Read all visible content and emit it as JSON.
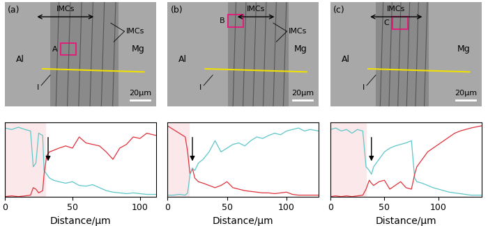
{
  "panels": [
    {
      "label": "(a)",
      "matrix_left": "Al",
      "matrix_right": "Mg",
      "imc_labels": [
        "IMCs",
        "IMCs"
      ],
      "region": "A",
      "layer": "I",
      "scale_bar": "20μm"
    },
    {
      "label": "(b)",
      "matrix_left": "Al",
      "matrix_right": "Mg",
      "imc_labels": [
        "IMCs",
        "IMCs"
      ],
      "region": "B",
      "layer": "I",
      "scale_bar": "20μm"
    },
    {
      "label": "(c)",
      "matrix_left": "Al",
      "matrix_right": "Mg",
      "imc_labels": [
        "IMCs"
      ],
      "region": "C",
      "layer": "I",
      "scale_bar": "20μm"
    }
  ],
  "chart_data": [
    {
      "type": "line",
      "x_label": "Distance/μm",
      "xlim": [
        0,
        112
      ],
      "xticks": [
        0,
        50,
        100
      ],
      "ylim": [
        0,
        1
      ],
      "tick_labels": "x",
      "shaded_range": [
        0,
        30
      ],
      "arrow_at": 32,
      "x": [
        0,
        5,
        10,
        15,
        19,
        21,
        23,
        25,
        28,
        29,
        31,
        33,
        36,
        40,
        45,
        50,
        55,
        60,
        65,
        70,
        75,
        80,
        85,
        90,
        95,
        100,
        105,
        112
      ],
      "series": [
        {
          "color": "#5cc6c8",
          "values": [
            0.92,
            0.9,
            0.93,
            0.9,
            0.88,
            0.4,
            0.45,
            0.85,
            0.82,
            0.35,
            0.3,
            0.25,
            0.22,
            0.2,
            0.18,
            0.2,
            0.15,
            0.14,
            0.16,
            0.12,
            0.08,
            0.06,
            0.05,
            0.04,
            0.05,
            0.04,
            0.03,
            0.03
          ]
        },
        {
          "color": "#e0303a",
          "values": [
            0,
            0.01,
            0,
            0.01,
            0.02,
            0.12,
            0.1,
            0.05,
            0.08,
            0.3,
            0.55,
            0.6,
            0.62,
            0.65,
            0.68,
            0.65,
            0.8,
            0.72,
            0.7,
            0.68,
            0.6,
            0.5,
            0.65,
            0.7,
            0.8,
            0.78,
            0.85,
            0.82
          ]
        }
      ]
    },
    {
      "type": "line",
      "x_label": "Distance/μm",
      "xlim": [
        0,
        127
      ],
      "xticks": [
        0,
        50,
        100
      ],
      "ylim": [
        0,
        1
      ],
      "tick_labels": "x",
      "shaded_range": [
        0,
        18
      ],
      "arrow_at": 21,
      "x": [
        0,
        5,
        10,
        15,
        17,
        19,
        21,
        23,
        26,
        30,
        35,
        40,
        45,
        50,
        55,
        60,
        65,
        70,
        75,
        80,
        85,
        90,
        95,
        100,
        105,
        110,
        115,
        120,
        127
      ],
      "series": [
        {
          "color": "#e0303a",
          "values": [
            0.95,
            0.9,
            0.85,
            0.8,
            0.6,
            0.3,
            0.38,
            0.25,
            0.2,
            0.18,
            0.15,
            0.12,
            0.15,
            0.2,
            0.12,
            0.1,
            0.08,
            0.07,
            0.06,
            0.05,
            0.05,
            0.04,
            0.05,
            0.06,
            0.03,
            0.02,
            0.02,
            0.02,
            0.02
          ]
        },
        {
          "color": "#5cc6c8",
          "values": [
            0.02,
            0.02,
            0.03,
            0.02,
            0.05,
            0.3,
            0.38,
            0.35,
            0.45,
            0.5,
            0.6,
            0.75,
            0.6,
            0.65,
            0.7,
            0.72,
            0.68,
            0.75,
            0.8,
            0.78,
            0.82,
            0.85,
            0.83,
            0.88,
            0.9,
            0.92,
            0.88,
            0.9,
            0.88
          ]
        }
      ]
    },
    {
      "type": "line",
      "x_label": "Distance/μm",
      "xlim": [
        0,
        140
      ],
      "xticks": [
        0,
        50,
        100
      ],
      "ylim": [
        0,
        1
      ],
      "tick_labels": "x",
      "shaded_range": [
        0,
        33
      ],
      "arrow_at": 38,
      "x": [
        0,
        5,
        10,
        15,
        20,
        25,
        30,
        33,
        36,
        38,
        40,
        45,
        50,
        55,
        60,
        65,
        70,
        75,
        78,
        80,
        85,
        90,
        95,
        100,
        105,
        110,
        115,
        120,
        125,
        130,
        140
      ],
      "series": [
        {
          "color": "#5cc6c8",
          "values": [
            0.9,
            0.92,
            0.88,
            0.9,
            0.85,
            0.9,
            0.88,
            0.4,
            0.35,
            0.3,
            0.4,
            0.5,
            0.6,
            0.65,
            0.68,
            0.7,
            0.72,
            0.75,
            0.25,
            0.2,
            0.18,
            0.15,
            0.12,
            0.1,
            0.08,
            0.06,
            0.05,
            0.04,
            0.03,
            0.02,
            0.02
          ]
        },
        {
          "color": "#e0303a",
          "values": [
            0,
            0.01,
            0,
            0.01,
            0,
            0.01,
            0.02,
            0.1,
            0.22,
            0.18,
            0.15,
            0.2,
            0.22,
            0.1,
            0.15,
            0.2,
            0.12,
            0.1,
            0.3,
            0.4,
            0.5,
            0.6,
            0.65,
            0.7,
            0.75,
            0.8,
            0.85,
            0.88,
            0.9,
            0.92,
            0.95
          ]
        }
      ]
    }
  ]
}
